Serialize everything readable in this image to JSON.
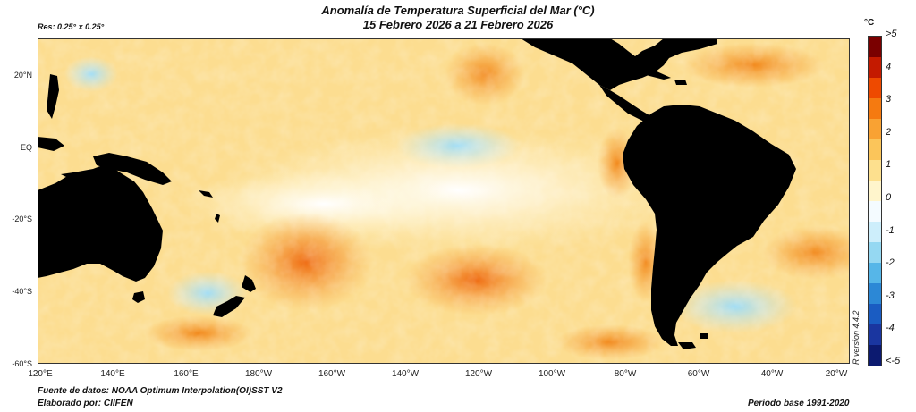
{
  "title": {
    "line1": "Anomalía de Temperatura Superficial del Mar (°C)",
    "line2": "15 Febrero 2026 a 21 Febrero 2026"
  },
  "resolution": "Res: 0.25° x 0.25°",
  "latitude_labels": [
    "20°N",
    "EQ",
    "-20°S",
    "-40°S",
    "-60°S"
  ],
  "longitude_labels": [
    "120°E",
    "140°E",
    "160°E",
    "180°W",
    "160°W",
    "140°W",
    "120°W",
    "100°W",
    "80°W",
    "60°W",
    "40°W",
    "20°W"
  ],
  "colorbar": {
    "unit": "°C",
    "labels": [
      ">5",
      "4",
      "3",
      "2",
      "1",
      "0",
      "-1",
      "-2",
      "-3",
      "-4",
      "<-5"
    ],
    "colors": [
      "#7a0000",
      "#c41a00",
      "#ee4a00",
      "#f57a10",
      "#f9a233",
      "#fbc55a",
      "#fde08e",
      "#fff5cc",
      "#f4fbff",
      "#cdeefb",
      "#95d8f2",
      "#56b6e8",
      "#2c88d6",
      "#1a5cc2",
      "#1a36a0",
      "#0c1a70"
    ]
  },
  "version": "R version 4.4.2",
  "footer": {
    "source": "Fuente de datos: NOAA Optimum Interpolation(OI)SST V2",
    "made_by": "Elaborado por: CIIFEN",
    "base_period": "Periodo base 1991-2020"
  },
  "colors": {
    "land": "#000000",
    "ocean_base": "#fbd47a"
  }
}
